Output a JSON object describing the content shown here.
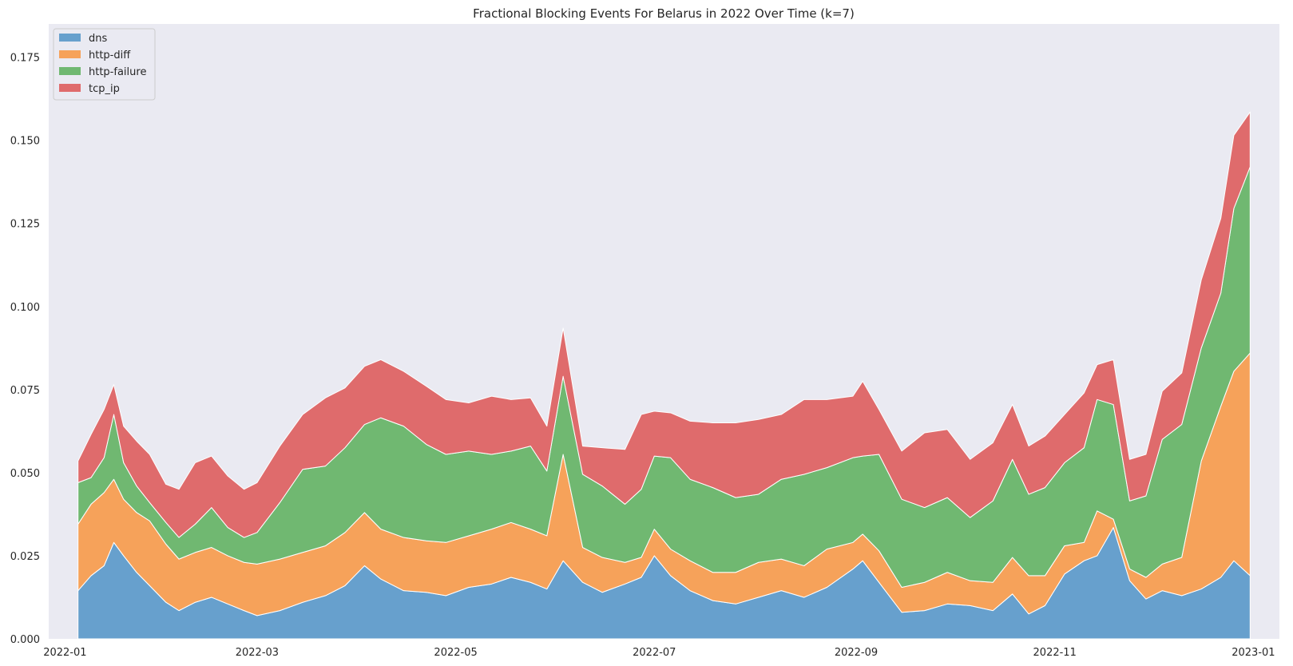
{
  "chart_data": {
    "type": "area",
    "stacked": true,
    "title": "Fractional Blocking Events For Belarus in 2022 Over Time (k=7)",
    "xlabel": "",
    "ylabel": "",
    "x_range": [
      "2022-01-05",
      "2022-12-31"
    ],
    "xlim": [
      "2021-12-27",
      "2023-01-09"
    ],
    "ylim": [
      0,
      0.185
    ],
    "x_ticks": [
      "2022-01-01",
      "2022-03-01",
      "2022-05-01",
      "2022-07-01",
      "2022-09-01",
      "2022-11-01",
      "2023-01-01"
    ],
    "x_tick_labels": [
      "2022-01",
      "2022-03",
      "2022-05",
      "2022-07",
      "2022-09",
      "2022-11",
      "2023-01"
    ],
    "y_ticks": [
      0,
      0.025,
      0.05,
      0.075,
      0.1,
      0.125,
      0.15,
      0.175
    ],
    "y_tick_labels": [
      "0.000",
      "0.025",
      "0.050",
      "0.075",
      "0.100",
      "0.125",
      "0.150",
      "0.175"
    ],
    "grid": false,
    "background": "#eaeaf2",
    "legend": "top-left",
    "series": [
      {
        "name": "dns",
        "color": "#67a0cd",
        "points": [
          [
            "2022-01-05",
            0.0145
          ],
          [
            "2022-01-09",
            0.019
          ],
          [
            "2022-01-13",
            0.022
          ],
          [
            "2022-01-16",
            0.029
          ],
          [
            "2022-01-19",
            0.025
          ],
          [
            "2022-01-23",
            0.02
          ],
          [
            "2022-01-27",
            0.016
          ],
          [
            "2022-02-01",
            0.011
          ],
          [
            "2022-02-05",
            0.0085
          ],
          [
            "2022-02-10",
            0.011
          ],
          [
            "2022-02-15",
            0.0125
          ],
          [
            "2022-02-20",
            0.0105
          ],
          [
            "2022-02-25",
            0.0085
          ],
          [
            "2022-03-01",
            0.007
          ],
          [
            "2022-03-08",
            0.0085
          ],
          [
            "2022-03-15",
            0.011
          ],
          [
            "2022-03-22",
            0.013
          ],
          [
            "2022-03-28",
            0.016
          ],
          [
            "2022-04-03",
            0.022
          ],
          [
            "2022-04-08",
            0.018
          ],
          [
            "2022-04-15",
            0.0145
          ],
          [
            "2022-04-22",
            0.014
          ],
          [
            "2022-04-28",
            0.013
          ],
          [
            "2022-05-05",
            0.0155
          ],
          [
            "2022-05-12",
            0.0165
          ],
          [
            "2022-05-18",
            0.0185
          ],
          [
            "2022-05-24",
            0.017
          ],
          [
            "2022-05-29",
            0.015
          ],
          [
            "2022-06-03",
            0.0235
          ],
          [
            "2022-06-09",
            0.017
          ],
          [
            "2022-06-15",
            0.014
          ],
          [
            "2022-06-22",
            0.0165
          ],
          [
            "2022-06-27",
            0.0185
          ],
          [
            "2022-07-01",
            0.025
          ],
          [
            "2022-07-06",
            0.019
          ],
          [
            "2022-07-12",
            0.0145
          ],
          [
            "2022-07-19",
            0.0115
          ],
          [
            "2022-07-26",
            0.0105
          ],
          [
            "2022-08-02",
            0.0125
          ],
          [
            "2022-08-09",
            0.0145
          ],
          [
            "2022-08-16",
            0.0125
          ],
          [
            "2022-08-23",
            0.0155
          ],
          [
            "2022-08-31",
            0.021
          ],
          [
            "2022-09-03",
            0.0235
          ],
          [
            "2022-09-08",
            0.017
          ],
          [
            "2022-09-15",
            0.008
          ],
          [
            "2022-09-22",
            0.0085
          ],
          [
            "2022-09-29",
            0.0105
          ],
          [
            "2022-10-06",
            0.01
          ],
          [
            "2022-10-13",
            0.0085
          ],
          [
            "2022-10-19",
            0.0135
          ],
          [
            "2022-10-24",
            0.0075
          ],
          [
            "2022-10-29",
            0.01
          ],
          [
            "2022-11-04",
            0.0195
          ],
          [
            "2022-11-10",
            0.0235
          ],
          [
            "2022-11-14",
            0.025
          ],
          [
            "2022-11-19",
            0.0335
          ],
          [
            "2022-11-24",
            0.0175
          ],
          [
            "2022-11-29",
            0.012
          ],
          [
            "2022-12-04",
            0.0145
          ],
          [
            "2022-12-10",
            0.013
          ],
          [
            "2022-12-16",
            0.015
          ],
          [
            "2022-12-22",
            0.0185
          ],
          [
            "2022-12-26",
            0.0235
          ],
          [
            "2022-12-31",
            0.019
          ]
        ]
      },
      {
        "name": "http-diff",
        "color": "#f6a25a",
        "points": [
          [
            "2022-01-05",
            0.02
          ],
          [
            "2022-01-09",
            0.0215
          ],
          [
            "2022-01-13",
            0.022
          ],
          [
            "2022-01-16",
            0.019
          ],
          [
            "2022-01-19",
            0.017
          ],
          [
            "2022-01-23",
            0.018
          ],
          [
            "2022-01-27",
            0.0195
          ],
          [
            "2022-02-01",
            0.0175
          ],
          [
            "2022-02-05",
            0.0155
          ],
          [
            "2022-02-10",
            0.015
          ],
          [
            "2022-02-15",
            0.015
          ],
          [
            "2022-02-20",
            0.0145
          ],
          [
            "2022-02-25",
            0.0145
          ],
          [
            "2022-03-01",
            0.0155
          ],
          [
            "2022-03-08",
            0.0155
          ],
          [
            "2022-03-15",
            0.015
          ],
          [
            "2022-03-22",
            0.015
          ],
          [
            "2022-03-28",
            0.016
          ],
          [
            "2022-04-03",
            0.016
          ],
          [
            "2022-04-08",
            0.015
          ],
          [
            "2022-04-15",
            0.016
          ],
          [
            "2022-04-22",
            0.0155
          ],
          [
            "2022-04-28",
            0.016
          ],
          [
            "2022-05-05",
            0.0155
          ],
          [
            "2022-05-12",
            0.0165
          ],
          [
            "2022-05-18",
            0.0165
          ],
          [
            "2022-05-24",
            0.016
          ],
          [
            "2022-05-29",
            0.016
          ],
          [
            "2022-06-03",
            0.032
          ],
          [
            "2022-06-09",
            0.0105
          ],
          [
            "2022-06-15",
            0.0105
          ],
          [
            "2022-06-22",
            0.0065
          ],
          [
            "2022-06-27",
            0.006
          ],
          [
            "2022-07-01",
            0.008
          ],
          [
            "2022-07-06",
            0.008
          ],
          [
            "2022-07-12",
            0.009
          ],
          [
            "2022-07-19",
            0.0085
          ],
          [
            "2022-07-26",
            0.0095
          ],
          [
            "2022-08-02",
            0.0105
          ],
          [
            "2022-08-09",
            0.0095
          ],
          [
            "2022-08-16",
            0.0095
          ],
          [
            "2022-08-23",
            0.0115
          ],
          [
            "2022-08-31",
            0.008
          ],
          [
            "2022-09-03",
            0.008
          ],
          [
            "2022-09-08",
            0.0095
          ],
          [
            "2022-09-15",
            0.0075
          ],
          [
            "2022-09-22",
            0.0085
          ],
          [
            "2022-09-29",
            0.0095
          ],
          [
            "2022-10-06",
            0.0075
          ],
          [
            "2022-10-13",
            0.0085
          ],
          [
            "2022-10-19",
            0.011
          ],
          [
            "2022-10-24",
            0.0115
          ],
          [
            "2022-10-29",
            0.009
          ],
          [
            "2022-11-04",
            0.0085
          ],
          [
            "2022-11-10",
            0.0055
          ],
          [
            "2022-11-14",
            0.0135
          ],
          [
            "2022-11-19",
            0.0025
          ],
          [
            "2022-11-24",
            0.0035
          ],
          [
            "2022-11-29",
            0.0065
          ],
          [
            "2022-12-04",
            0.008
          ],
          [
            "2022-12-10",
            0.0115
          ],
          [
            "2022-12-16",
            0.0385
          ],
          [
            "2022-12-22",
            0.0515
          ],
          [
            "2022-12-26",
            0.057
          ],
          [
            "2022-12-31",
            0.067
          ]
        ]
      },
      {
        "name": "http-failure",
        "color": "#70b871",
        "points": [
          [
            "2022-01-05",
            0.0125
          ],
          [
            "2022-01-09",
            0.008
          ],
          [
            "2022-01-13",
            0.0105
          ],
          [
            "2022-01-16",
            0.0195
          ],
          [
            "2022-01-19",
            0.011
          ],
          [
            "2022-01-23",
            0.008
          ],
          [
            "2022-01-27",
            0.0055
          ],
          [
            "2022-02-01",
            0.0065
          ],
          [
            "2022-02-05",
            0.0065
          ],
          [
            "2022-02-10",
            0.0085
          ],
          [
            "2022-02-15",
            0.012
          ],
          [
            "2022-02-20",
            0.0085
          ],
          [
            "2022-02-25",
            0.0075
          ],
          [
            "2022-03-01",
            0.0095
          ],
          [
            "2022-03-08",
            0.017
          ],
          [
            "2022-03-15",
            0.025
          ],
          [
            "2022-03-22",
            0.024
          ],
          [
            "2022-03-28",
            0.0255
          ],
          [
            "2022-04-03",
            0.0265
          ],
          [
            "2022-04-08",
            0.0335
          ],
          [
            "2022-04-15",
            0.0335
          ],
          [
            "2022-04-22",
            0.029
          ],
          [
            "2022-04-28",
            0.0265
          ],
          [
            "2022-05-05",
            0.0255
          ],
          [
            "2022-05-12",
            0.0225
          ],
          [
            "2022-05-18",
            0.0215
          ],
          [
            "2022-05-24",
            0.025
          ],
          [
            "2022-05-29",
            0.0195
          ],
          [
            "2022-06-03",
            0.0235
          ],
          [
            "2022-06-09",
            0.022
          ],
          [
            "2022-06-15",
            0.0215
          ],
          [
            "2022-06-22",
            0.0175
          ],
          [
            "2022-06-27",
            0.0205
          ],
          [
            "2022-07-01",
            0.022
          ],
          [
            "2022-07-06",
            0.0275
          ],
          [
            "2022-07-12",
            0.0245
          ],
          [
            "2022-07-19",
            0.0255
          ],
          [
            "2022-07-26",
            0.0225
          ],
          [
            "2022-08-02",
            0.0205
          ],
          [
            "2022-08-09",
            0.024
          ],
          [
            "2022-08-16",
            0.0275
          ],
          [
            "2022-08-23",
            0.0245
          ],
          [
            "2022-08-31",
            0.0255
          ],
          [
            "2022-09-03",
            0.0235
          ],
          [
            "2022-09-08",
            0.029
          ],
          [
            "2022-09-15",
            0.0265
          ],
          [
            "2022-09-22",
            0.0225
          ],
          [
            "2022-09-29",
            0.0225
          ],
          [
            "2022-10-06",
            0.019
          ],
          [
            "2022-10-13",
            0.0245
          ],
          [
            "2022-10-19",
            0.0295
          ],
          [
            "2022-10-24",
            0.0245
          ],
          [
            "2022-10-29",
            0.0265
          ],
          [
            "2022-11-04",
            0.025
          ],
          [
            "2022-11-10",
            0.0285
          ],
          [
            "2022-11-14",
            0.0335
          ],
          [
            "2022-11-19",
            0.0345
          ],
          [
            "2022-11-24",
            0.0205
          ],
          [
            "2022-11-29",
            0.0245
          ],
          [
            "2022-12-04",
            0.0375
          ],
          [
            "2022-12-10",
            0.04
          ],
          [
            "2022-12-16",
            0.034
          ],
          [
            "2022-12-22",
            0.034
          ],
          [
            "2022-12-26",
            0.049
          ],
          [
            "2022-12-31",
            0.056
          ]
        ]
      },
      {
        "name": "tcp_ip",
        "color": "#df6b6c",
        "points": [
          [
            "2022-01-05",
            0.0065
          ],
          [
            "2022-01-09",
            0.013
          ],
          [
            "2022-01-13",
            0.0145
          ],
          [
            "2022-01-16",
            0.009
          ],
          [
            "2022-01-19",
            0.011
          ],
          [
            "2022-01-23",
            0.0135
          ],
          [
            "2022-01-27",
            0.0145
          ],
          [
            "2022-02-01",
            0.0115
          ],
          [
            "2022-02-05",
            0.0145
          ],
          [
            "2022-02-10",
            0.0185
          ],
          [
            "2022-02-15",
            0.0155
          ],
          [
            "2022-02-20",
            0.0155
          ],
          [
            "2022-02-25",
            0.0145
          ],
          [
            "2022-03-01",
            0.015
          ],
          [
            "2022-03-08",
            0.017
          ],
          [
            "2022-03-15",
            0.0165
          ],
          [
            "2022-03-22",
            0.0205
          ],
          [
            "2022-03-28",
            0.018
          ],
          [
            "2022-04-03",
            0.0175
          ],
          [
            "2022-04-08",
            0.0175
          ],
          [
            "2022-04-15",
            0.0165
          ],
          [
            "2022-04-22",
            0.0175
          ],
          [
            "2022-04-28",
            0.0165
          ],
          [
            "2022-05-05",
            0.0145
          ],
          [
            "2022-05-12",
            0.0175
          ],
          [
            "2022-05-18",
            0.0155
          ],
          [
            "2022-05-24",
            0.0145
          ],
          [
            "2022-05-29",
            0.0135
          ],
          [
            "2022-06-03",
            0.0145
          ],
          [
            "2022-06-09",
            0.0085
          ],
          [
            "2022-06-15",
            0.0115
          ],
          [
            "2022-06-22",
            0.0165
          ],
          [
            "2022-06-27",
            0.0225
          ],
          [
            "2022-07-01",
            0.0135
          ],
          [
            "2022-07-06",
            0.0135
          ],
          [
            "2022-07-12",
            0.0175
          ],
          [
            "2022-07-19",
            0.0195
          ],
          [
            "2022-07-26",
            0.0225
          ],
          [
            "2022-08-02",
            0.0225
          ],
          [
            "2022-08-09",
            0.0195
          ],
          [
            "2022-08-16",
            0.0225
          ],
          [
            "2022-08-23",
            0.0205
          ],
          [
            "2022-08-31",
            0.0185
          ],
          [
            "2022-09-03",
            0.0225
          ],
          [
            "2022-09-08",
            0.0135
          ],
          [
            "2022-09-15",
            0.0145
          ],
          [
            "2022-09-22",
            0.0225
          ],
          [
            "2022-09-29",
            0.0205
          ],
          [
            "2022-10-06",
            0.0175
          ],
          [
            "2022-10-13",
            0.0175
          ],
          [
            "2022-10-19",
            0.0165
          ],
          [
            "2022-10-24",
            0.0145
          ],
          [
            "2022-10-29",
            0.0155
          ],
          [
            "2022-11-04",
            0.0145
          ],
          [
            "2022-11-10",
            0.0165
          ],
          [
            "2022-11-14",
            0.0105
          ],
          [
            "2022-11-19",
            0.0135
          ],
          [
            "2022-11-24",
            0.0125
          ],
          [
            "2022-11-29",
            0.0125
          ],
          [
            "2022-12-04",
            0.0145
          ],
          [
            "2022-12-10",
            0.0155
          ],
          [
            "2022-12-16",
            0.0205
          ],
          [
            "2022-12-22",
            0.0225
          ],
          [
            "2022-12-26",
            0.022
          ],
          [
            "2022-12-31",
            0.0165
          ]
        ]
      }
    ]
  }
}
